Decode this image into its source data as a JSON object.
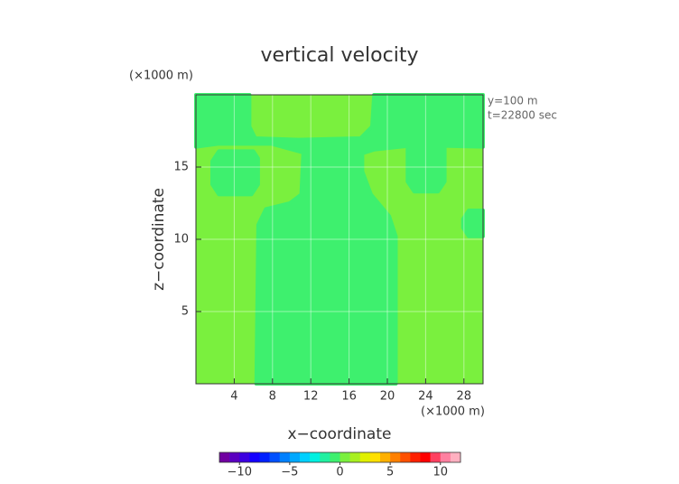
{
  "chart_data": {
    "type": "contour",
    "title": "vertical velocity",
    "y_unit": "(×1000 m)",
    "x_unit": "(×1000 m)",
    "annotations": [
      "y=100 m",
      "t=22800 sec"
    ],
    "xlabel": "x−coordinate",
    "ylabel": "z−coordinate",
    "xlim": [
      0,
      30
    ],
    "ylim": [
      0,
      20
    ],
    "xticks": [
      4,
      8,
      12,
      16,
      20,
      24,
      28
    ],
    "yticks": [
      5,
      10,
      15
    ],
    "grid": true,
    "background_value": 0.5,
    "regions": [
      {
        "value": -0.5,
        "x": [
          0,
          5.6,
          5.6,
          6.2,
          10.7,
          17.2,
          18.4,
          18.6,
          30,
          30,
          22.8,
          18.6,
          17.2,
          11.2,
          7.9,
          2.3,
          0
        ],
        "y": [
          20,
          20,
          17.8,
          17.0,
          16.9,
          17.0,
          17.8,
          20,
          20,
          16.4,
          16.5,
          16.2,
          15.9,
          16.0,
          16.6,
          16.6,
          16.4
        ]
      },
      {
        "value": -0.5,
        "x": [
          6.3,
          20.9,
          20.9,
          20.2,
          18.3,
          17.4,
          17.4,
          11.2,
          11.0,
          9.8,
          7.3,
          6.5
        ],
        "y": [
          0,
          0,
          10.2,
          11.6,
          13.1,
          14.7,
          15.8,
          15.9,
          13.1,
          12.5,
          12.1,
          11.0
        ]
      },
      {
        "value": -0.5,
        "x": [
          2.4,
          6.0,
          6.5,
          6.5,
          5.8,
          2.4,
          1.7,
          1.7
        ],
        "y": [
          16.1,
          16.1,
          15.6,
          13.8,
          13.1,
          13.1,
          13.8,
          15.4
        ]
      },
      {
        "value": -0.5,
        "x": [
          22.1,
          26.0,
          26.0,
          25.3,
          22.8,
          22.1
        ],
        "y": [
          16.4,
          16.4,
          14.0,
          13.3,
          13.3,
          14.0
        ]
      },
      {
        "value": -0.5,
        "x": [
          30,
          28.5,
          27.9,
          27.9,
          28.5,
          30
        ],
        "y": [
          12.0,
          12.0,
          11.4,
          10.8,
          10.2,
          10.2
        ]
      }
    ],
    "clim": [
      -12,
      12
    ],
    "colormap": [
      "#7000a0",
      "#5a00c0",
      "#3c00e0",
      "#1400ff",
      "#0020ff",
      "#0050ff",
      "#0080ff",
      "#00a8ff",
      "#00d0ff",
      "#00f0e0",
      "#20f0a0",
      "#3ef06e",
      "#7af03e",
      "#a8f020",
      "#e0f000",
      "#ffe000",
      "#ffb000",
      "#ff8000",
      "#ff5000",
      "#ff2000",
      "#ff0000",
      "#ff4060",
      "#ff80a0",
      "#ffb0c0"
    ],
    "cticks": [
      {
        "value": -10,
        "label": "−10"
      },
      {
        "value": -5,
        "label": "−5"
      },
      0,
      5,
      10
    ]
  }
}
